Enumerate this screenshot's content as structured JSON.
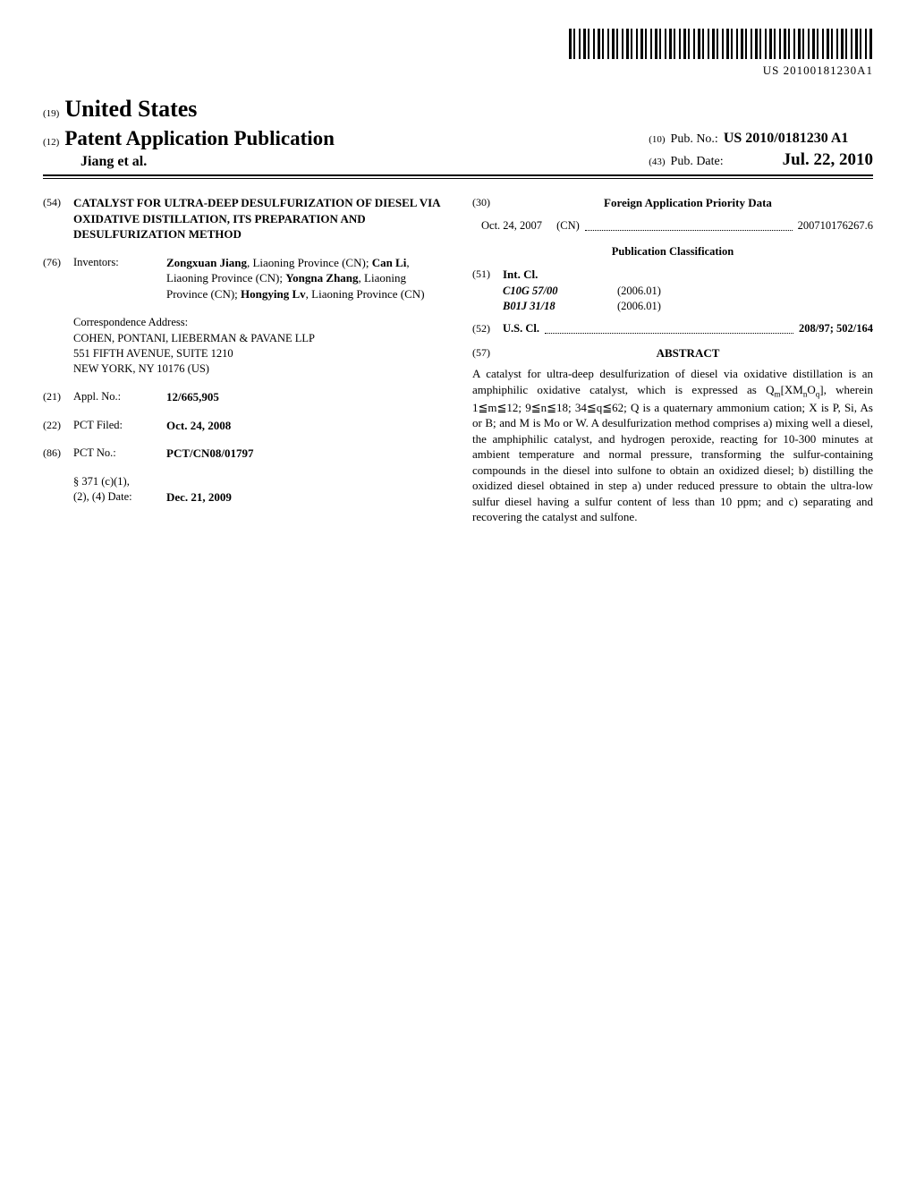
{
  "barcode_label": "US 20100181230A1",
  "header": {
    "tag19": "(19)",
    "country": "United States",
    "tag12": "(12)",
    "pub_type": "Patent Application Publication",
    "inventors_short": "Jiang et al.",
    "tag10": "(10)",
    "pub_no_label": "Pub. No.:",
    "pub_no": "US 2010/0181230 A1",
    "tag43": "(43)",
    "pub_date_label": "Pub. Date:",
    "pub_date": "Jul. 22, 2010"
  },
  "left": {
    "tag54": "(54)",
    "title": "CATALYST FOR ULTRA-DEEP DESULFURIZATION OF DIESEL VIA OXIDATIVE DISTILLATION, ITS PREPARATION AND DESULFURIZATION METHOD",
    "tag76": "(76)",
    "inventors_label": "Inventors:",
    "inventors_html": "<span class=\"name\">Zongxuan Jiang</span>, Liaoning Province (CN); <span class=\"name\">Can Li</span>, Liaoning Province (CN); <span class=\"name\">Yongna Zhang</span>, Liaoning Province (CN); <span class=\"name\">Hongying Lv</span>, Liaoning Province (CN)",
    "corr_label": "Correspondence Address:",
    "corr_name": "COHEN, PONTANI, LIEBERMAN & PAVANE LLP",
    "corr_addr1": "551 FIFTH AVENUE, SUITE 1210",
    "corr_addr2": "NEW YORK, NY 10176 (US)",
    "tag21": "(21)",
    "applno_label": "Appl. No.:",
    "applno": "12/665,905",
    "tag22": "(22)",
    "pctfiled_label": "PCT Filed:",
    "pctfiled": "Oct. 24, 2008",
    "tag86": "(86)",
    "pctno_label": "PCT No.:",
    "pctno": "PCT/CN08/01797",
    "s371_label1": "§ 371 (c)(1),",
    "s371_label2": "(2), (4) Date:",
    "s371_date": "Dec. 21, 2009"
  },
  "right": {
    "tag30": "(30)",
    "foreign_header": "Foreign Application Priority Data",
    "foreign_date": "Oct. 24, 2007",
    "foreign_cc": "(CN)",
    "foreign_no": "200710176267.6",
    "pubclass_header": "Publication Classification",
    "tag51": "(51)",
    "intcl_label": "Int. Cl.",
    "intcl1_code": "C10G 57/00",
    "intcl1_date": "(2006.01)",
    "intcl2_code": "B01J 31/18",
    "intcl2_date": "(2006.01)",
    "tag52": "(52)",
    "uscl_label": "U.S. Cl.",
    "uscl_val": "208/97; 502/164",
    "tag57": "(57)",
    "abstract_label": "ABSTRACT",
    "abstract_html": "A catalyst for ultra-deep desulfurization of diesel via oxidative distillation is an amphiphilic oxidative catalyst, which is expressed as Q<span class=\"sub\">m</span>[XM<span class=\"sub\">n</span>O<span class=\"sub\">q</span>], wherein 1≦m≦12; 9≦n≦18; 34≦q≦62; Q is a quaternary ammonium cation; X is P, Si, As or B; and M is Mo or W. A desulfurization method comprises a) mixing well a diesel, the amphiphilic catalyst, and hydrogen peroxide, reacting for 10-300 minutes at ambient temperature and normal pressure, transforming the sulfur-containing compounds in the diesel into sulfone to obtain an oxidized diesel; b) distilling the oxidized diesel obtained in step a) under reduced pressure to obtain the ultra-low sulfur diesel having a sulfur content of less than 10 ppm; and c) separating and recovering the catalyst and sulfone."
  }
}
